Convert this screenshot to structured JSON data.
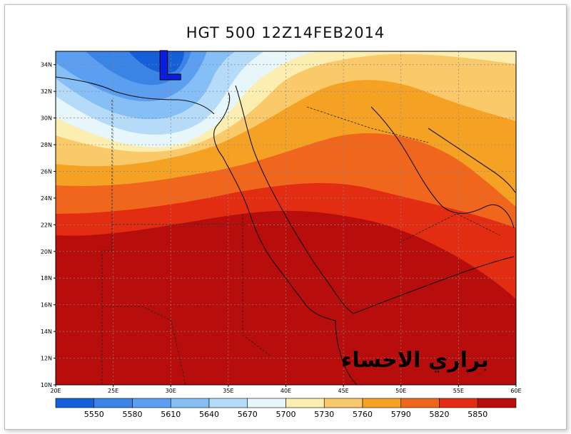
{
  "title": "HGT 500 12Z14FEB2014",
  "watermark": "براري الاحساء",
  "low_marker": "L",
  "map": {
    "lon_ticks": [
      "20E",
      "25E",
      "30E",
      "35E",
      "40E",
      "45E",
      "50E",
      "55E",
      "60E"
    ],
    "lat_ticks": [
      "10N",
      "12N",
      "14N",
      "16N",
      "18N",
      "20N",
      "22N",
      "24N",
      "26N",
      "28N",
      "30N",
      "32N",
      "34N"
    ],
    "lon_range": [
      20,
      60
    ],
    "lat_range": [
      10,
      35
    ],
    "grid": true
  },
  "colorbar": {
    "levels": [
      "5550",
      "5580",
      "5610",
      "5640",
      "5670",
      "5700",
      "5730",
      "5760",
      "5790",
      "5820",
      "5850"
    ],
    "colors": [
      "#1560d8",
      "#3a84e6",
      "#5c9ff0",
      "#85bff5",
      "#b5dbf9",
      "#e6f6fb",
      "#fbeeb0",
      "#f9c96a",
      "#f5a224",
      "#f0661c",
      "#e22d12",
      "#b70d0d"
    ]
  }
}
